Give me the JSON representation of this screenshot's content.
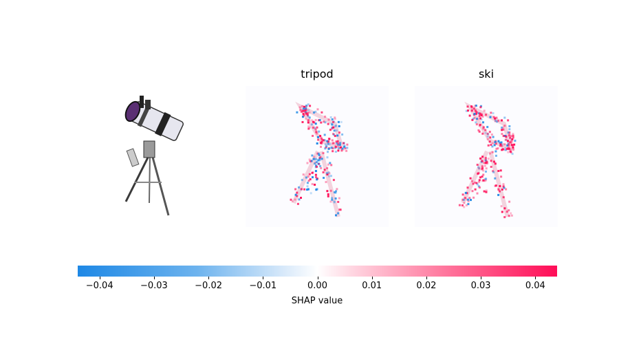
{
  "chart_data": {
    "type": "heatmap",
    "panels": [
      {
        "name": "original-image",
        "title": "",
        "content": "telescope on tripod"
      },
      {
        "name": "tripod",
        "title": "tripod"
      },
      {
        "name": "ski",
        "title": "ski"
      }
    ],
    "colorbar": {
      "label": "SHAP value",
      "range": [
        -0.044,
        0.044
      ],
      "ticks": [
        -0.04,
        -0.03,
        -0.02,
        -0.01,
        0.0,
        0.01,
        0.02,
        0.03,
        0.04
      ],
      "tick_labels": [
        "−0.04",
        "−0.03",
        "−0.02",
        "−0.01",
        "0.00",
        "0.01",
        "0.02",
        "0.03",
        "0.04"
      ],
      "colors": {
        "negative": "#1e88e5",
        "zero": "#ffffff",
        "positive": "#ff0d57"
      }
    }
  }
}
